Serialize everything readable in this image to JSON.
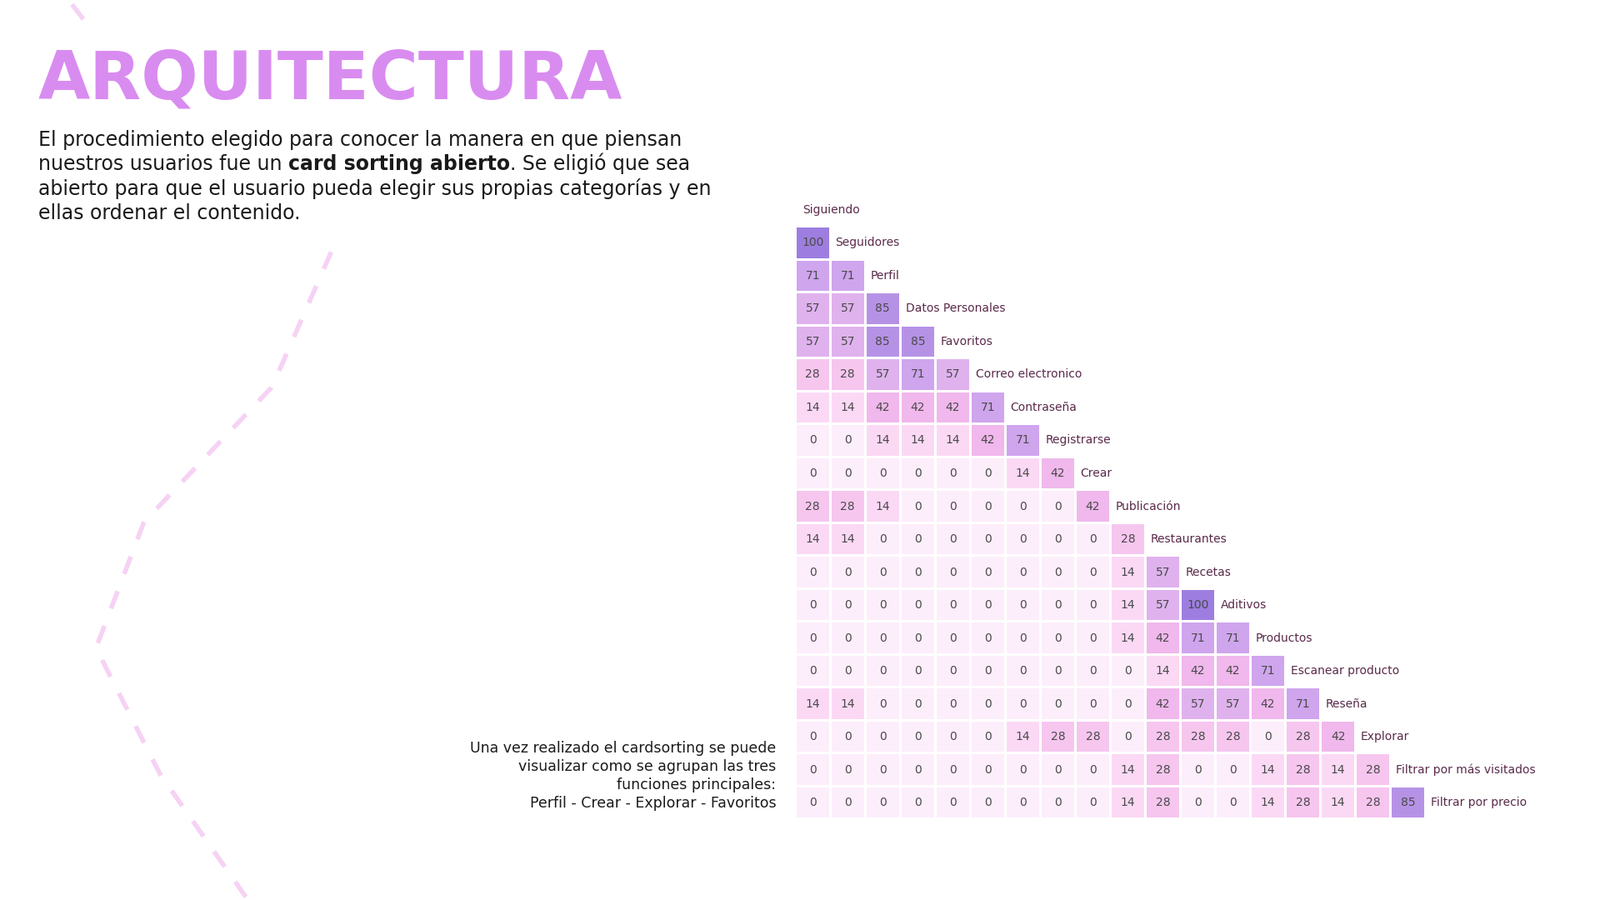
{
  "chart_data": {
    "type": "heatmap",
    "title": "ARQUITECTURA",
    "subtitle_lines": [
      "El procedimiento elegido para conocer la manera en que piensan",
      "nuestros usuarios fue un card sorting abierto. Se eligió que sea",
      "abierto para que el usuario pueda elegir sus propias categorías y en",
      "ellas ordenar el contenido."
    ],
    "highlight": "card sorting abierto",
    "annotation_lines": [
      "Una vez realizado el cardsorting se puede",
      "visualizar como se agrupan las tres",
      "funciones principales:",
      "Perfil - Crear - Explorar - Favoritos"
    ],
    "categories": [
      "Siguiendo",
      "Seguidores",
      "Perfil",
      "Datos Personales",
      "Favoritos",
      "Correo electronico",
      "Contraseña",
      "Registrarse",
      "Crear",
      "Publicación",
      "Restaurantes",
      "Recetas",
      "Aditivos",
      "Productos",
      "Escanear producto",
      "Reseña",
      "Explorar",
      "Filtrar por más visitados",
      "Filtrar por precio"
    ],
    "cells": [
      [],
      [
        100
      ],
      [
        71,
        71
      ],
      [
        57,
        57,
        85
      ],
      [
        57,
        57,
        85,
        85
      ],
      [
        28,
        28,
        57,
        71,
        57
      ],
      [
        14,
        14,
        42,
        42,
        42,
        71
      ],
      [
        0,
        0,
        14,
        14,
        14,
        42,
        71
      ],
      [
        0,
        0,
        0,
        0,
        0,
        0,
        14,
        42
      ],
      [
        28,
        28,
        14,
        0,
        0,
        0,
        0,
        0,
        42
      ],
      [
        14,
        14,
        0,
        0,
        0,
        0,
        0,
        0,
        0,
        28
      ],
      [
        0,
        0,
        0,
        0,
        0,
        0,
        0,
        0,
        0,
        14,
        57
      ],
      [
        0,
        0,
        0,
        0,
        0,
        0,
        0,
        0,
        0,
        14,
        57,
        100
      ],
      [
        0,
        0,
        0,
        0,
        0,
        0,
        0,
        0,
        0,
        14,
        42,
        71,
        71
      ],
      [
        0,
        0,
        0,
        0,
        0,
        0,
        0,
        0,
        0,
        0,
        14,
        42,
        42,
        71
      ],
      [
        14,
        14,
        0,
        0,
        0,
        0,
        0,
        0,
        0,
        0,
        42,
        57,
        57,
        42,
        71
      ],
      [
        0,
        0,
        0,
        0,
        0,
        0,
        14,
        28,
        28,
        0,
        28,
        28,
        28,
        0,
        28,
        42
      ],
      [
        0,
        0,
        0,
        0,
        0,
        0,
        0,
        0,
        0,
        14,
        28,
        0,
        0,
        14,
        28,
        14,
        28
      ],
      [
        0,
        0,
        0,
        0,
        0,
        0,
        0,
        0,
        0,
        14,
        28,
        0,
        0,
        14,
        28,
        14,
        28,
        85
      ]
    ],
    "data_labels": true,
    "tick_labels": false
  }
}
